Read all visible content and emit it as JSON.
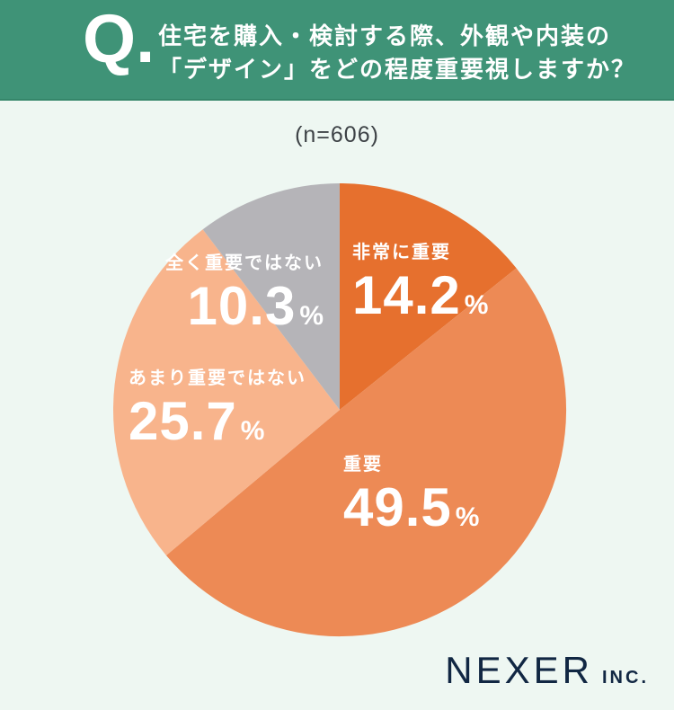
{
  "header": {
    "q_label": "Q.",
    "question_line1": "住宅を購入・検討する際、外観や内装の",
    "question_line2": "「デザイン」をどの程度重要視しますか？"
  },
  "sample_size_label": "(n=606)",
  "chart_data": {
    "type": "pie",
    "title": "住宅を購入・検討する際、外観や内装の「デザイン」をどの程度重要視しますか？",
    "sample_size": "n=606",
    "direction": "clockwise",
    "start_angle_deg": 0,
    "value_suffix": "%",
    "legend_position": "labels-inside-slices",
    "slices": [
      {
        "id": "very-important",
        "label": "非常に重要",
        "value": 14.2,
        "display": "14.2",
        "color": "#e6702e"
      },
      {
        "id": "important",
        "label": "重要",
        "value": 49.5,
        "display": "49.5",
        "color": "#ed8a55"
      },
      {
        "id": "not-very-important",
        "label": "あまり重要ではない",
        "value": 25.7,
        "display": "25.7",
        "color": "#f8b48c"
      },
      {
        "id": "not-at-all",
        "label": "全く重要ではない",
        "value": 10.3,
        "display": "10.3",
        "color": "#b5b4b8"
      }
    ]
  },
  "footer": {
    "brand": "NEXER",
    "suffix": "INC."
  },
  "colors": {
    "background": "#eef7f2",
    "header_green": "#3f9377",
    "label_text": "#ffffff",
    "logo_navy": "#112743"
  }
}
